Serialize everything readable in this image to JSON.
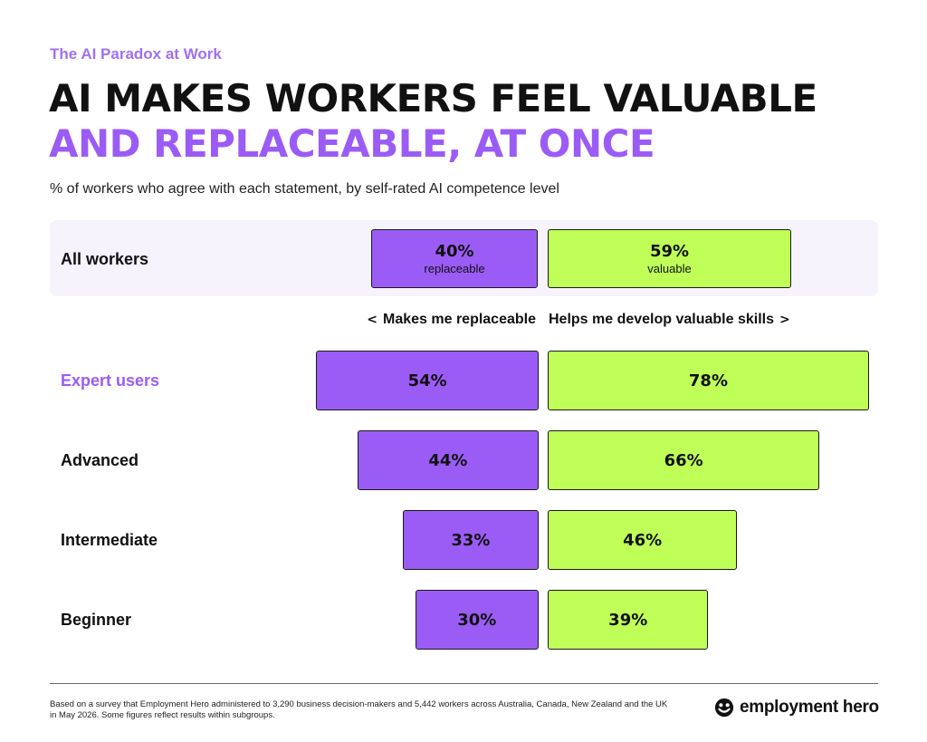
{
  "kicker": "The AI Paradox at Work",
  "headline": {
    "line1": "AI MAKES WORKERS FEEL VALUABLE",
    "line2": "AND REPLACEABLE, AT ONCE"
  },
  "subtitle": "% of workers who agree with each statement, by self-rated AI competence level",
  "all_workers": {
    "label": "All workers",
    "replaceable_pct": "40%",
    "replaceable_sub": "replaceable",
    "valuable_pct": "59%",
    "valuable_sub": "valuable"
  },
  "axis": {
    "left_label": "Makes me replaceable",
    "right_label": "Helps me develop valuable skills",
    "left_chevron": "<",
    "right_chevron": ">"
  },
  "chart_data": {
    "type": "bar",
    "orientation": "diverging-horizontal",
    "categories": [
      "All workers",
      "Expert users",
      "Advanced",
      "Intermediate",
      "Beginner"
    ],
    "series": [
      {
        "name": "Makes me replaceable",
        "values": [
          40,
          54,
          44,
          33,
          30
        ],
        "labels": [
          "40%",
          "54%",
          "44%",
          "33%",
          "30%"
        ],
        "color": "#9b5cf5"
      },
      {
        "name": "Helps me develop valuable skills",
        "values": [
          59,
          78,
          66,
          46,
          39
        ],
        "labels": [
          "59%",
          "78%",
          "66%",
          "46%",
          "39%"
        ],
        "color": "#bfff57"
      }
    ],
    "highlight_category": "Expert users",
    "highlight_color": "#9b5cf5"
  },
  "footnote": "Based on a survey that Employment Hero administered to 3,290 business decision-makers and 5,442 workers across Australia, Canada, New Zealand and the UK in May 2026. Some figures reflect results within subgroups.",
  "logo_text": "employment hero",
  "colors": {
    "purple": "#9b5cf5",
    "green": "#bfff57",
    "panel": "#f6f3fc"
  }
}
